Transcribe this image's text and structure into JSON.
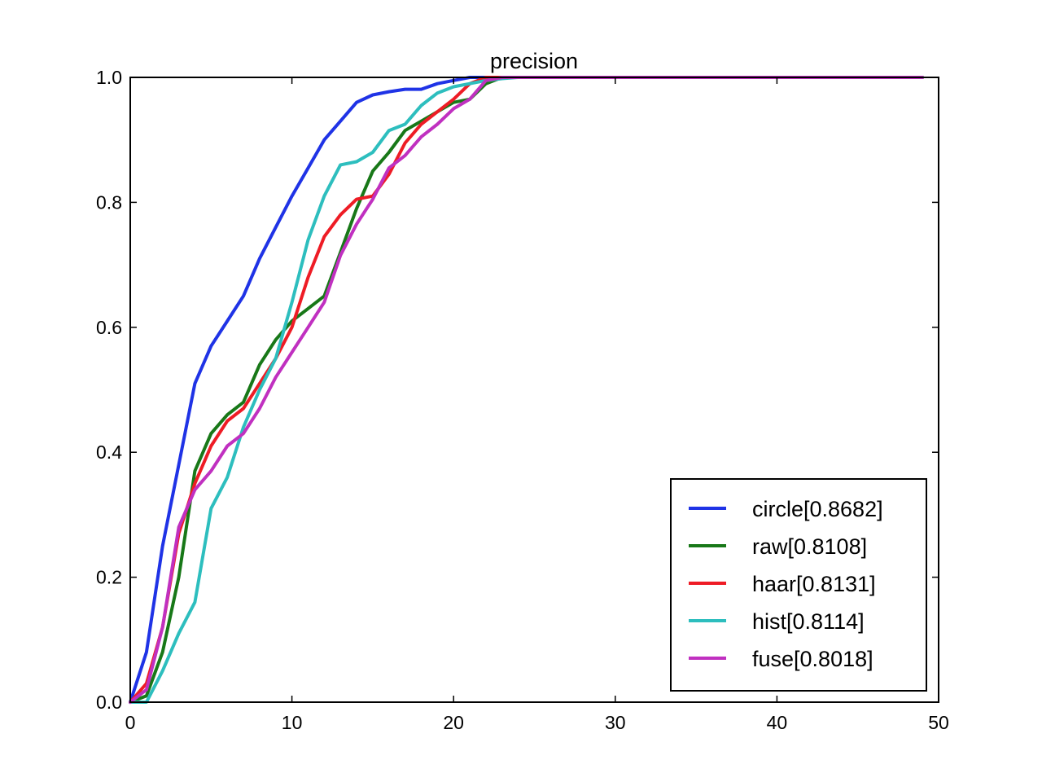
{
  "chart_data": {
    "type": "line",
    "title": "precision",
    "xlabel": "",
    "ylabel": "",
    "xlim": [
      0,
      50
    ],
    "ylim": [
      0.0,
      1.0
    ],
    "x_ticks": [
      "0",
      "10",
      "20",
      "30",
      "40",
      "50"
    ],
    "y_ticks": [
      "0.0",
      "0.2",
      "0.4",
      "0.6",
      "0.8",
      "1.0"
    ],
    "grid": false,
    "legend_position": "lower-right",
    "series": [
      {
        "name": "circle[0.8682]",
        "color": "#1f33e6",
        "x": [
          0,
          1,
          2,
          3,
          4,
          5,
          6,
          7,
          8,
          9,
          10,
          11,
          12,
          13,
          14,
          15,
          16,
          17,
          18,
          19,
          20,
          21,
          22,
          23,
          24,
          25,
          30,
          35,
          40,
          45,
          49
        ],
        "y": [
          0.0,
          0.08,
          0.25,
          0.38,
          0.51,
          0.57,
          0.61,
          0.65,
          0.71,
          0.76,
          0.81,
          0.855,
          0.9,
          0.93,
          0.96,
          0.972,
          0.977,
          0.981,
          0.981,
          0.99,
          0.995,
          1.0,
          1.0,
          1.0,
          1.0,
          1.0,
          1.0,
          1.0,
          1.0,
          1.0,
          1.0
        ]
      },
      {
        "name": "raw[0.8108]",
        "color": "#187818",
        "x": [
          0,
          1,
          2,
          3,
          4,
          5,
          6,
          7,
          8,
          9,
          10,
          11,
          12,
          13,
          14,
          15,
          16,
          17,
          18,
          19,
          20,
          21,
          22,
          23,
          24,
          25,
          30,
          35,
          40,
          45,
          49
        ],
        "y": [
          0.0,
          0.01,
          0.08,
          0.2,
          0.37,
          0.43,
          0.46,
          0.48,
          0.54,
          0.58,
          0.61,
          0.63,
          0.65,
          0.72,
          0.79,
          0.85,
          0.88,
          0.915,
          0.93,
          0.945,
          0.96,
          0.965,
          0.99,
          1.0,
          1.0,
          1.0,
          1.0,
          1.0,
          1.0,
          1.0,
          1.0
        ]
      },
      {
        "name": "haar[0.8131]",
        "color": "#ee1c25",
        "x": [
          0,
          1,
          2,
          3,
          4,
          5,
          6,
          7,
          8,
          9,
          10,
          11,
          12,
          13,
          14,
          15,
          16,
          17,
          18,
          19,
          20,
          21,
          22,
          23,
          24,
          25,
          30,
          35,
          40,
          45,
          49
        ],
        "y": [
          0.0,
          0.03,
          0.12,
          0.27,
          0.35,
          0.41,
          0.45,
          0.47,
          0.51,
          0.55,
          0.6,
          0.68,
          0.745,
          0.78,
          0.805,
          0.81,
          0.845,
          0.895,
          0.925,
          0.945,
          0.965,
          0.99,
          1.0,
          1.0,
          1.0,
          1.0,
          1.0,
          1.0,
          1.0,
          1.0,
          1.0
        ]
      },
      {
        "name": "hist[0.8114]",
        "color": "#2dbebe",
        "x": [
          0,
          1,
          2,
          3,
          4,
          5,
          6,
          7,
          8,
          9,
          10,
          11,
          12,
          13,
          14,
          15,
          16,
          17,
          18,
          19,
          20,
          21,
          22,
          23,
          24,
          25,
          30,
          35,
          40,
          45,
          49
        ],
        "y": [
          0.0,
          0.0,
          0.05,
          0.11,
          0.16,
          0.31,
          0.36,
          0.44,
          0.5,
          0.55,
          0.64,
          0.74,
          0.81,
          0.86,
          0.865,
          0.88,
          0.915,
          0.925,
          0.955,
          0.975,
          0.985,
          0.99,
          0.995,
          0.998,
          1.0,
          1.0,
          1.0,
          1.0,
          1.0,
          1.0,
          1.0
        ]
      },
      {
        "name": "fuse[0.8018]",
        "color": "#c030c0",
        "x": [
          0,
          1,
          2,
          3,
          4,
          5,
          6,
          7,
          8,
          9,
          10,
          11,
          12,
          13,
          14,
          15,
          16,
          17,
          18,
          19,
          20,
          21,
          22,
          23,
          24,
          25,
          30,
          35,
          40,
          45,
          49
        ],
        "y": [
          0.0,
          0.02,
          0.12,
          0.28,
          0.34,
          0.37,
          0.41,
          0.43,
          0.47,
          0.52,
          0.56,
          0.6,
          0.64,
          0.715,
          0.765,
          0.805,
          0.855,
          0.875,
          0.905,
          0.925,
          0.95,
          0.965,
          0.995,
          1.0,
          1.0,
          1.0,
          1.0,
          1.0,
          1.0,
          1.0,
          1.0
        ]
      }
    ]
  }
}
